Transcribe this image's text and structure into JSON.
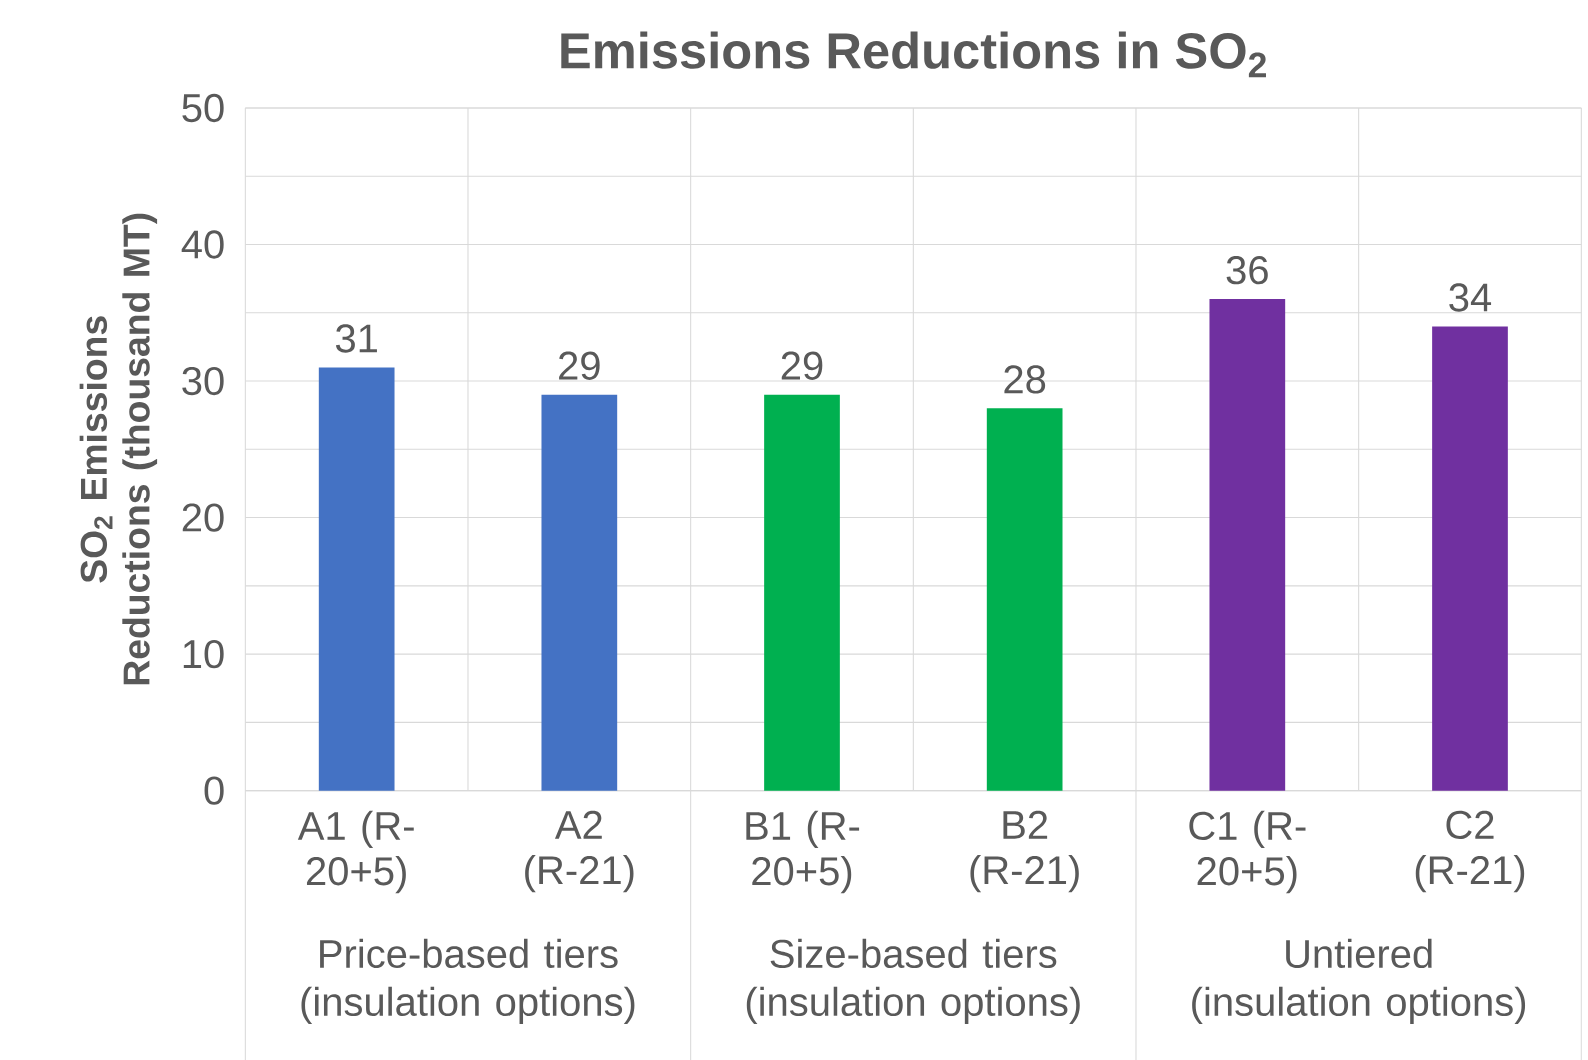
{
  "chart_data": {
    "type": "bar",
    "title": "Emissions Reductions in SO$_{2}$",
    "ylabel": "SO$_{2}$ Emissions Reductions (thousand MT)",
    "categories": [
      "A1 (R-20+5)",
      "A2 (R-21)",
      "B1 (R-20+5)",
      "B2 (R-21)",
      "C1 (R-20+5)",
      "C2 (R-21)"
    ],
    "values": [
      31,
      29,
      29,
      28,
      36,
      34
    ],
    "colors": [
      "#4472c4",
      "#4472c4",
      "#00b050",
      "#00b050",
      "#7030a0",
      "#7030a0"
    ],
    "ylim": [
      0,
      50
    ],
    "yticks": [
      0,
      10,
      20,
      30,
      40,
      50
    ],
    "grid": true,
    "data_labels": true,
    "annotations": [
      "Price-based tiers (insulation options)",
      "Size-based tiers (insulation options)",
      "Untiered (insulation options)"
    ]
  }
}
